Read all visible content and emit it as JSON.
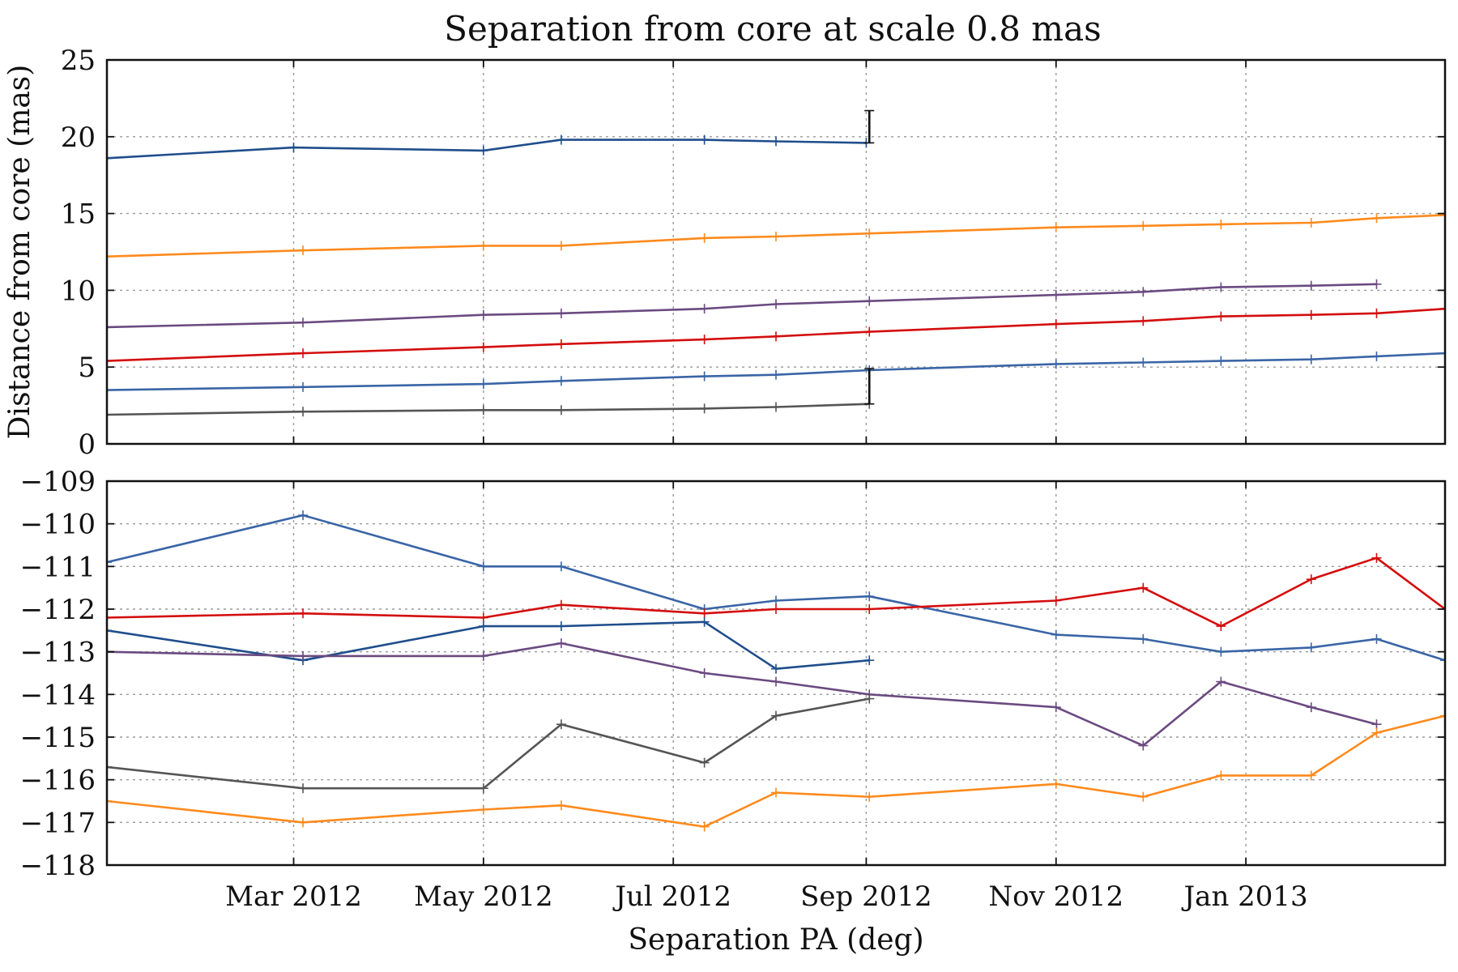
{
  "title": "Separation from core at scale 0.8 mas",
  "chart_data": [
    {
      "type": "line",
      "panel": "top",
      "ylabel": "Distance from core (mas)",
      "xlabel": "",
      "ylim": [
        0,
        25
      ],
      "yticks": [
        0,
        5,
        10,
        15,
        20,
        25
      ],
      "grid": true,
      "series": [
        {
          "color": "#1f4e8c",
          "points": [
            [
              "2012-01-01",
              18.6
            ],
            [
              "2012-03-01",
              19.3
            ],
            [
              "2012-05-01",
              19.1
            ],
            [
              "2012-05-26",
              19.8
            ],
            [
              "2012-07-11",
              19.8
            ],
            [
              "2012-08-03",
              19.7
            ],
            [
              "2012-09-01",
              19.6
            ]
          ]
        },
        {
          "color": "#ff8a1c",
          "points": [
            [
              "2012-01-01",
              12.2
            ],
            [
              "2012-03-04",
              12.6
            ],
            [
              "2012-05-01",
              12.9
            ],
            [
              "2012-05-26",
              12.9
            ],
            [
              "2012-07-11",
              13.4
            ],
            [
              "2012-08-03",
              13.5
            ],
            [
              "2012-09-02",
              13.7
            ],
            [
              "2012-11-01",
              14.1
            ],
            [
              "2012-11-29",
              14.2
            ],
            [
              "2012-12-24",
              14.3
            ],
            [
              "2013-01-22",
              14.4
            ],
            [
              "2013-02-12",
              14.7
            ],
            [
              "2013-03-06",
              14.9
            ]
          ]
        },
        {
          "color": "#6b4a80",
          "points": [
            [
              "2012-01-01",
              7.6
            ],
            [
              "2012-03-04",
              7.9
            ],
            [
              "2012-05-01",
              8.4
            ],
            [
              "2012-05-26",
              8.5
            ],
            [
              "2012-07-11",
              8.8
            ],
            [
              "2012-08-03",
              9.1
            ],
            [
              "2012-09-02",
              9.3
            ],
            [
              "2012-11-01",
              9.7
            ],
            [
              "2012-11-29",
              9.9
            ],
            [
              "2012-12-24",
              10.2
            ],
            [
              "2013-01-22",
              10.3
            ],
            [
              "2013-02-12",
              10.4
            ]
          ]
        },
        {
          "color": "#d40d0d",
          "points": [
            [
              "2012-01-01",
              5.4
            ],
            [
              "2012-03-04",
              5.9
            ],
            [
              "2012-05-01",
              6.3
            ],
            [
              "2012-05-26",
              6.5
            ],
            [
              "2012-07-11",
              6.8
            ],
            [
              "2012-08-03",
              7.0
            ],
            [
              "2012-09-02",
              7.3
            ],
            [
              "2012-11-01",
              7.8
            ],
            [
              "2012-11-29",
              8.0
            ],
            [
              "2012-12-24",
              8.3
            ],
            [
              "2013-01-22",
              8.4
            ],
            [
              "2013-02-12",
              8.5
            ],
            [
              "2013-03-06",
              8.8
            ]
          ]
        },
        {
          "color": "#3a65a6",
          "points": [
            [
              "2012-01-01",
              3.5
            ],
            [
              "2012-03-04",
              3.7
            ],
            [
              "2012-05-01",
              3.9
            ],
            [
              "2012-05-26",
              4.1
            ],
            [
              "2012-07-11",
              4.4
            ],
            [
              "2012-08-03",
              4.5
            ],
            [
              "2012-09-02",
              4.8
            ],
            [
              "2012-11-01",
              5.2
            ],
            [
              "2012-11-29",
              5.3
            ],
            [
              "2012-12-24",
              5.4
            ],
            [
              "2013-01-22",
              5.5
            ],
            [
              "2013-02-12",
              5.7
            ],
            [
              "2013-03-06",
              5.9
            ]
          ]
        },
        {
          "color": "#555555",
          "points": [
            [
              "2012-01-01",
              1.9
            ],
            [
              "2012-03-04",
              2.1
            ],
            [
              "2012-05-01",
              2.2
            ],
            [
              "2012-05-26",
              2.2
            ],
            [
              "2012-07-11",
              2.3
            ],
            [
              "2012-08-03",
              2.4
            ],
            [
              "2012-09-02",
              2.6
            ]
          ]
        }
      ],
      "error_bars": [
        {
          "x": "2012-09-02",
          "y_low": 19.6,
          "y_high": 21.7,
          "color": "#111111"
        },
        {
          "x": "2012-09-02",
          "y_low": 2.6,
          "y_high": 4.9,
          "color": "#111111"
        }
      ]
    },
    {
      "type": "line",
      "panel": "bottom",
      "xlabel": "Separation PA (deg)",
      "ylabel": "",
      "ylim": [
        -118,
        -109
      ],
      "yticks": [
        "−118",
        "−117",
        "−116",
        "−115",
        "−114",
        "−113",
        "−112",
        "−111",
        "−110",
        "−109"
      ],
      "ytick_values": [
        -118,
        -117,
        -116,
        -115,
        -114,
        -113,
        -112,
        -111,
        -110,
        -109
      ],
      "xticks": [
        {
          "date": "2012-03-01",
          "label": "Mar 2012"
        },
        {
          "date": "2012-05-01",
          "label": "May 2012"
        },
        {
          "date": "2012-07-01",
          "label": "Jul 2012"
        },
        {
          "date": "2012-09-01",
          "label": "Sep 2012"
        },
        {
          "date": "2012-11-01",
          "label": "Nov 2012"
        },
        {
          "date": "2013-01-01",
          "label": "Jan 2013"
        }
      ],
      "xlim": [
        "2012-01-01",
        "2013-03-06"
      ],
      "grid": true,
      "series": [
        {
          "color": "#3a65a6",
          "points": [
            [
              "2012-01-01",
              -110.9
            ],
            [
              "2012-03-04",
              -109.8
            ],
            [
              "2012-05-01",
              -111.0
            ],
            [
              "2012-05-26",
              -111.0
            ],
            [
              "2012-07-11",
              -112.0
            ],
            [
              "2012-08-03",
              -111.8
            ],
            [
              "2012-09-02",
              -111.7
            ],
            [
              "2012-11-01",
              -112.6
            ],
            [
              "2012-11-29",
              -112.7
            ],
            [
              "2012-12-24",
              -113.0
            ],
            [
              "2013-01-22",
              -112.9
            ],
            [
              "2013-02-12",
              -112.7
            ],
            [
              "2013-03-06",
              -113.2
            ]
          ]
        },
        {
          "color": "#d40d0d",
          "points": [
            [
              "2012-01-01",
              -112.2
            ],
            [
              "2012-03-04",
              -112.1
            ],
            [
              "2012-05-01",
              -112.2
            ],
            [
              "2012-05-26",
              -111.9
            ],
            [
              "2012-07-11",
              -112.1
            ],
            [
              "2012-08-03",
              -112.0
            ],
            [
              "2012-09-02",
              -112.0
            ],
            [
              "2012-11-01",
              -111.8
            ],
            [
              "2012-11-29",
              -111.5
            ],
            [
              "2012-12-24",
              -112.4
            ],
            [
              "2013-01-22",
              -111.3
            ],
            [
              "2013-02-12",
              -110.8
            ],
            [
              "2013-03-06",
              -112.0
            ]
          ]
        },
        {
          "color": "#1f4e8c",
          "points": [
            [
              "2012-01-01",
              -112.5
            ],
            [
              "2012-03-04",
              -113.2
            ],
            [
              "2012-05-01",
              -112.4
            ],
            [
              "2012-05-26",
              -112.4
            ],
            [
              "2012-07-11",
              -112.3
            ],
            [
              "2012-08-03",
              -113.4
            ],
            [
              "2012-09-02",
              -113.2
            ]
          ]
        },
        {
          "color": "#6b4a80",
          "points": [
            [
              "2012-01-01",
              -113.0
            ],
            [
              "2012-03-04",
              -113.1
            ],
            [
              "2012-05-01",
              -113.1
            ],
            [
              "2012-05-26",
              -112.8
            ],
            [
              "2012-07-11",
              -113.5
            ],
            [
              "2012-08-03",
              -113.7
            ],
            [
              "2012-09-02",
              -114.0
            ],
            [
              "2012-11-01",
              -114.3
            ],
            [
              "2012-11-29",
              -115.2
            ],
            [
              "2012-12-24",
              -113.7
            ],
            [
              "2013-01-22",
              -114.3
            ],
            [
              "2013-02-12",
              -114.7
            ]
          ]
        },
        {
          "color": "#555555",
          "points": [
            [
              "2012-01-01",
              -115.7
            ],
            [
              "2012-03-04",
              -116.2
            ],
            [
              "2012-05-01",
              -116.2
            ],
            [
              "2012-05-26",
              -114.7
            ],
            [
              "2012-07-11",
              -115.6
            ],
            [
              "2012-08-03",
              -114.5
            ],
            [
              "2012-09-02",
              -114.1
            ]
          ]
        },
        {
          "color": "#ff8a1c",
          "points": [
            [
              "2012-01-01",
              -116.5
            ],
            [
              "2012-03-04",
              -117.0
            ],
            [
              "2012-05-01",
              -116.7
            ],
            [
              "2012-05-26",
              -116.6
            ],
            [
              "2012-07-11",
              -117.1
            ],
            [
              "2012-08-03",
              -116.3
            ],
            [
              "2012-09-02",
              -116.4
            ],
            [
              "2012-11-01",
              -116.1
            ],
            [
              "2012-11-29",
              -116.4
            ],
            [
              "2012-12-24",
              -115.9
            ],
            [
              "2013-01-22",
              -115.9
            ],
            [
              "2013-02-12",
              -114.9
            ],
            [
              "2013-03-06",
              -114.5
            ]
          ]
        }
      ]
    }
  ]
}
